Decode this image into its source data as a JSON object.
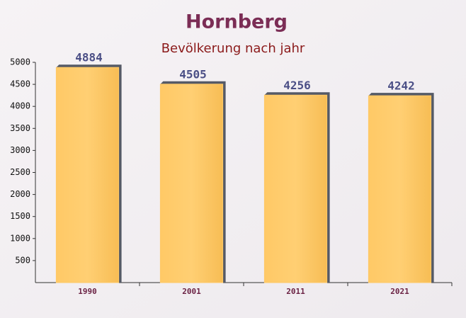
{
  "chart_data": {
    "type": "bar",
    "title": "Hornberg",
    "subtitle": "Bevölkerung nach jahr",
    "categories": [
      "1990",
      "2001",
      "2011",
      "2021"
    ],
    "values": [
      4884,
      4505,
      4256,
      4242
    ],
    "color": "#ffc966",
    "ylim": [
      0,
      5000
    ],
    "yticks": [
      500,
      1000,
      1500,
      2000,
      2500,
      3000,
      3500,
      4000,
      4500,
      5000
    ]
  }
}
